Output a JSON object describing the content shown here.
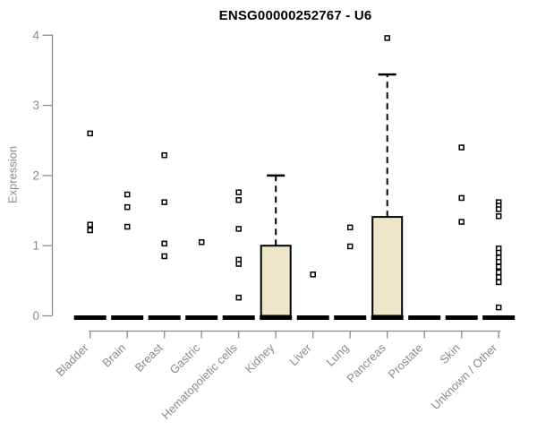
{
  "page": {
    "background": "#ffffff"
  },
  "chart_data": {
    "type": "boxplot",
    "title": "ENSG00000252767 - U6",
    "ylabel": "Expression",
    "xlabel": "",
    "ylim": [
      0,
      4
    ],
    "yticks": [
      0,
      1,
      2,
      3,
      4
    ],
    "grid": false,
    "legend": false,
    "colors": {
      "box_fill": "#ede6c8",
      "box_border": "#000000",
      "median": "#000000",
      "whisker": "#000000",
      "outlier_fill": "#ffffff",
      "outlier_border": "#000000",
      "axis": "#8a8a8a",
      "tick_text": "#8a8a8a",
      "title_text": "#000000"
    },
    "categories": [
      "Bladder",
      "Brain",
      "Breast",
      "Gastric",
      "Hematopoietic cells",
      "Kidney",
      "Liver",
      "Lung",
      "Pancreas",
      "Prostate",
      "Skin",
      "Unknown / Other"
    ],
    "boxes": [
      {
        "category": "Bladder",
        "q1": 0,
        "median": 0,
        "q3": 0,
        "whisker_low": 0,
        "whisker_high": 0,
        "outliers": [
          2.6,
          1.3,
          1.22
        ]
      },
      {
        "category": "Brain",
        "q1": 0,
        "median": 0,
        "q3": 0,
        "whisker_low": 0,
        "whisker_high": 0,
        "outliers": [
          1.73,
          1.55,
          1.27
        ]
      },
      {
        "category": "Breast",
        "q1": 0,
        "median": 0,
        "q3": 0,
        "whisker_low": 0,
        "whisker_high": 0,
        "outliers": [
          2.29,
          1.62,
          1.03,
          0.85
        ]
      },
      {
        "category": "Gastric",
        "q1": 0,
        "median": 0,
        "q3": 0,
        "whisker_low": 0,
        "whisker_high": 0,
        "outliers": [
          1.05
        ]
      },
      {
        "category": "Hematopoietic cells",
        "q1": 0,
        "median": 0,
        "q3": 0,
        "whisker_low": 0,
        "whisker_high": 0,
        "outliers": [
          1.76,
          1.65,
          1.24,
          0.8,
          0.74,
          0.26
        ]
      },
      {
        "category": "Kidney",
        "q1": 0,
        "median": 0,
        "q3": 1.0,
        "whisker_low": 0,
        "whisker_high": 2.0,
        "outliers": []
      },
      {
        "category": "Liver",
        "q1": 0,
        "median": 0,
        "q3": 0,
        "whisker_low": 0,
        "whisker_high": 0,
        "outliers": [
          0.59
        ]
      },
      {
        "category": "Lung",
        "q1": 0,
        "median": 0,
        "q3": 0,
        "whisker_low": 0,
        "whisker_high": 0,
        "outliers": [
          1.26,
          0.99
        ]
      },
      {
        "category": "Pancreas",
        "q1": 0,
        "median": 0,
        "q3": 1.41,
        "whisker_low": 0,
        "whisker_high": 3.44,
        "outliers": [
          3.96
        ]
      },
      {
        "category": "Prostate",
        "q1": 0,
        "median": 0,
        "q3": 0,
        "whisker_low": 0,
        "whisker_high": 0,
        "outliers": []
      },
      {
        "category": "Skin",
        "q1": 0,
        "median": 0,
        "q3": 0,
        "whisker_low": 0,
        "whisker_high": 0,
        "outliers": [
          2.4,
          1.68,
          1.34
        ]
      },
      {
        "category": "Unknown / Other",
        "q1": 0,
        "median": 0,
        "q3": 0,
        "whisker_low": 0,
        "whisker_high": 0,
        "outliers": [
          1.62,
          1.57,
          1.52,
          1.42,
          0.96,
          0.9,
          0.83,
          0.77,
          0.7,
          0.62,
          0.55,
          0.48,
          0.12
        ]
      }
    ]
  }
}
